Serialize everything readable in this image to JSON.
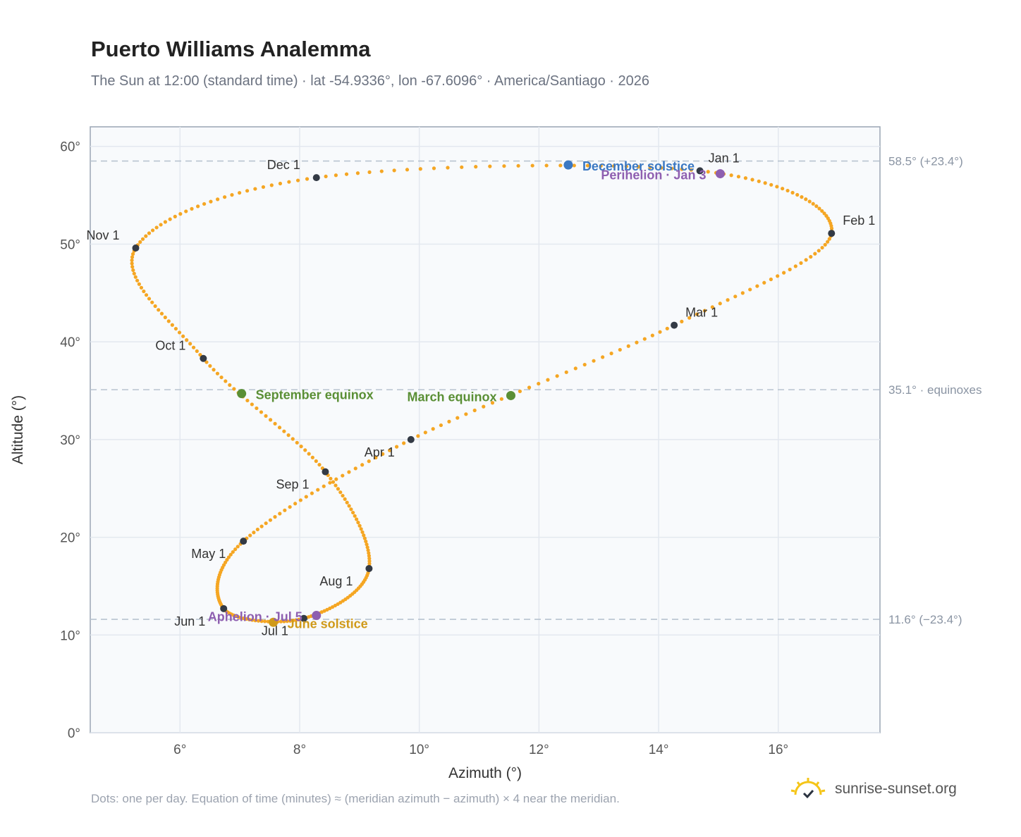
{
  "header": {
    "title": "Puerto Williams Analemma",
    "subtitle": "The Sun at 12:00 (standard time) · lat -54.9336°, lon -67.6096° · America/Santiago · 2026"
  },
  "footer": {
    "note": "Dots: one per day. Equation of time (minutes) ≈ (meridian azimuth − azimuth) × 4 near the meridian.",
    "brand": "sunrise-sunset.org"
  },
  "colors": {
    "curve": "#f5a623",
    "month_dot": "#333a45",
    "december_solstice": "#3b78c2",
    "june_solstice": "#d09a1a",
    "equinox": "#5a8f35",
    "apsis": "#8e5fb0",
    "plot_bg": "#f8fafc",
    "grid": "#e3e8ef",
    "ref_line": "#b8c4d0"
  },
  "chart_data": {
    "type": "scatter",
    "title": "Puerto Williams Analemma",
    "xlabel": "Azimuth (°)",
    "ylabel": "Altitude (°)",
    "xlim": [
      4.5,
      17.7
    ],
    "ylim": [
      0,
      62
    ],
    "x_ticks": [
      "6°",
      "8°",
      "10°",
      "12°",
      "14°",
      "16°"
    ],
    "x_tick_values": [
      6,
      8,
      10,
      12,
      14,
      16
    ],
    "y_ticks": [
      "0°",
      "10°",
      "20°",
      "30°",
      "40°",
      "50°",
      "60°"
    ],
    "y_tick_values": [
      0,
      10,
      20,
      30,
      40,
      50,
      60
    ],
    "grid": true,
    "reference_lines": [
      {
        "y": 58.5,
        "label": "58.5° (+23.4°)"
      },
      {
        "y": 35.1,
        "label": "35.1° · equinoxes"
      },
      {
        "y": 11.6,
        "label": "11.6° (−23.4°)"
      }
    ],
    "months": [
      {
        "label": "Jan 1",
        "x": 14.69,
        "y": 57.5
      },
      {
        "label": "Feb 1",
        "x": 16.89,
        "y": 51.1
      },
      {
        "label": "Mar 1",
        "x": 14.26,
        "y": 41.7
      },
      {
        "label": "Apr 1",
        "x": 9.86,
        "y": 30.0
      },
      {
        "label": "May 1",
        "x": 7.06,
        "y": 19.6
      },
      {
        "label": "Jun 1",
        "x": 6.73,
        "y": 12.7
      },
      {
        "label": "Jul 1",
        "x": 8.07,
        "y": 11.7
      },
      {
        "label": "Aug 1",
        "x": 9.16,
        "y": 16.8
      },
      {
        "label": "Sep 1",
        "x": 8.43,
        "y": 26.7
      },
      {
        "label": "Oct 1",
        "x": 6.39,
        "y": 38.3
      },
      {
        "label": "Nov 1",
        "x": 5.26,
        "y": 49.6
      },
      {
        "label": "Dec 1",
        "x": 8.28,
        "y": 56.8
      }
    ],
    "events": [
      {
        "label": "December solstice",
        "x": 12.49,
        "y": 58.1,
        "kind": "december_solstice"
      },
      {
        "label": "Perihelion · Jan 3",
        "x": 15.03,
        "y": 57.2,
        "kind": "apsis"
      },
      {
        "label": "March equinox",
        "x": 11.53,
        "y": 34.5,
        "kind": "equinox"
      },
      {
        "label": "September equinox",
        "x": 7.03,
        "y": 34.7,
        "kind": "equinox"
      },
      {
        "label": "June solstice",
        "x": 7.56,
        "y": 11.3,
        "kind": "june_solstice"
      },
      {
        "label": "Aphelion · Jul 5",
        "x": 8.28,
        "y": 12.0,
        "kind": "apsis"
      }
    ]
  }
}
